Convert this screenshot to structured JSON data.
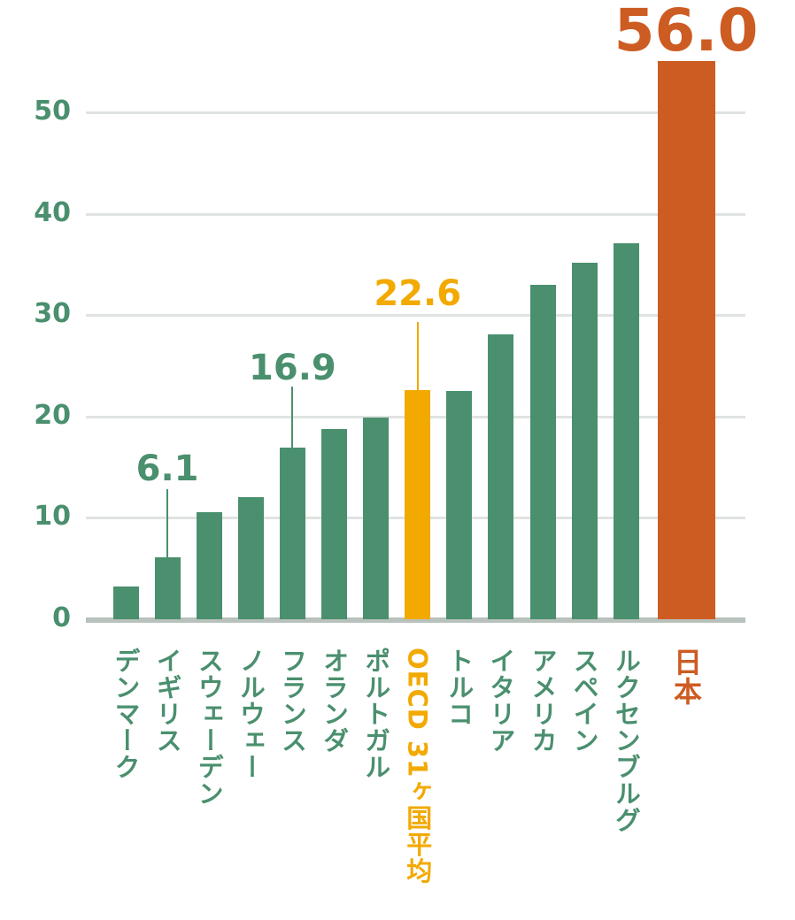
{
  "chart_data": {
    "type": "bar",
    "title": "",
    "xlabel": "",
    "ylabel": "",
    "ylim": [
      0,
      55
    ],
    "yticks": [
      0,
      10,
      20,
      30,
      40,
      50
    ],
    "grid": true,
    "categories": [
      "デンマーク",
      "イギリス",
      "スウェーデン",
      "ノルウェー",
      "フランス",
      "オランダ",
      "ポルトガル",
      "OECD 31ヶ国平均",
      "トルコ",
      "イタリア",
      "アメリカ",
      "スペイン",
      "ルクセンブルグ",
      "日本"
    ],
    "values": [
      3.2,
      6.1,
      10.6,
      12.0,
      16.9,
      18.8,
      19.9,
      22.6,
      22.5,
      28.1,
      33.0,
      35.2,
      37.1,
      56.0
    ],
    "data_labels": [
      {
        "index": 1,
        "text": "6.1"
      },
      {
        "index": 4,
        "text": "16.9"
      },
      {
        "index": 7,
        "text": "22.6"
      },
      {
        "index": 13,
        "text": "56.0"
      }
    ],
    "colors": {
      "default": "#4a8f6e",
      "OECD 31ヶ国平均": "#f2a900",
      "日本": "#cd5c23"
    }
  }
}
